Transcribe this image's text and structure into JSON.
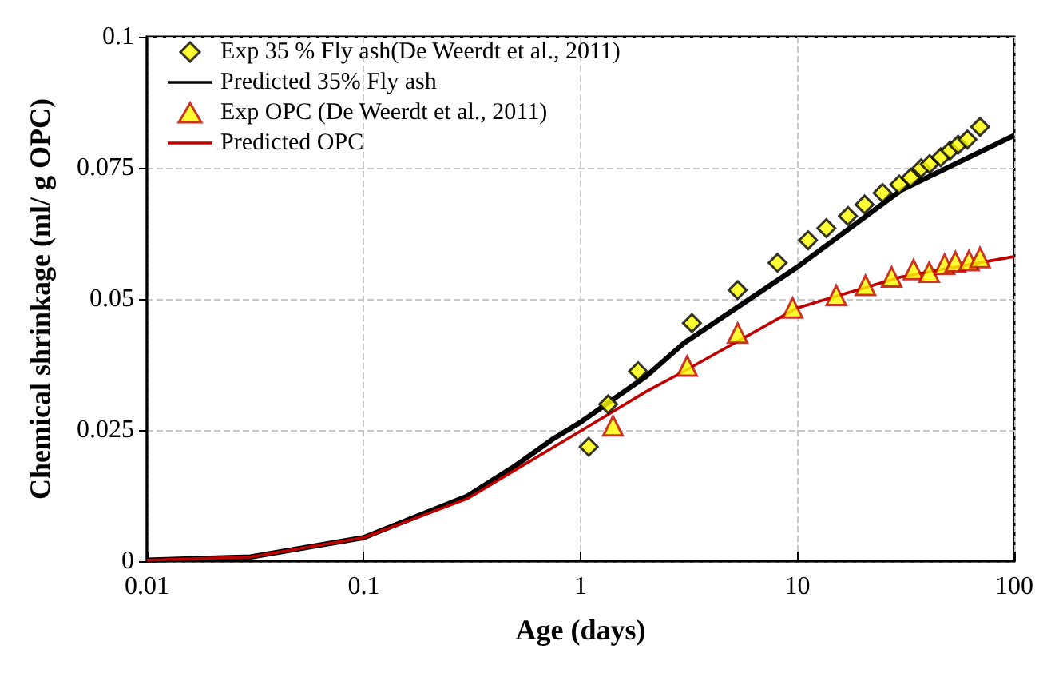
{
  "chart_data": {
    "type": "scatter",
    "xlabel": "Age (days)",
    "ylabel": "Chemical shrinkage (ml/ g OPC)",
    "log": "x",
    "xlim": [
      0.01,
      100
    ],
    "xticks": [
      0.01,
      0.1,
      1,
      10,
      100
    ],
    "ylim": [
      0,
      0.1
    ],
    "yticks": [
      0,
      0.025,
      0.05,
      0.075,
      0.1
    ],
    "grid": true,
    "legend": "top left",
    "series": [
      {
        "name": "Exp 35 % Fly ash(De Weerdt et al., 2011)",
        "type": "scatter",
        "marker": "diamond",
        "color": "#ffff00",
        "x": [
          1.09,
          1.34,
          1.84,
          3.26,
          5.3,
          8.1,
          11.2,
          13.6,
          17.1,
          20.4,
          24.7,
          29.5,
          33.3,
          37.2,
          40.7,
          45.8,
          50.6,
          55.1,
          60.8,
          69.5
        ],
        "values": [
          0.0218,
          0.0299,
          0.0362,
          0.0454,
          0.0517,
          0.0569,
          0.0612,
          0.0635,
          0.0658,
          0.068,
          0.0702,
          0.0718,
          0.0731,
          0.0749,
          0.0757,
          0.077,
          0.0783,
          0.0794,
          0.0804,
          0.0828
        ]
      },
      {
        "name": "Predicted 35% Fly ash",
        "type": "line",
        "marker": "none",
        "line_style": "solid",
        "color": "#000000",
        "x": [
          0.01,
          0.03,
          0.1,
          0.3,
          0.5,
          0.74,
          1,
          2,
          3,
          10,
          30,
          100
        ],
        "values": [
          0.0002,
          0.0008,
          0.0045,
          0.0124,
          0.0182,
          0.0232,
          0.0265,
          0.0352,
          0.0416,
          0.0561,
          0.0707,
          0.0812
        ]
      },
      {
        "name": "Exp OPC (De Weerdt et al., 2011)",
        "type": "scatter",
        "marker": "triangle",
        "color": "#ffff00",
        "x": [
          1.41,
          3.1,
          5.3,
          9.5,
          15.1,
          20.6,
          27.2,
          34.3,
          40.5,
          47.7,
          53.5,
          61.8,
          69.5
        ],
        "values": [
          0.0258,
          0.0372,
          0.0435,
          0.0483,
          0.0507,
          0.0526,
          0.0542,
          0.0556,
          0.0551,
          0.0566,
          0.0571,
          0.0573,
          0.0579
        ]
      },
      {
        "name": "Predicted OPC",
        "type": "line",
        "marker": "none",
        "line_style": "solid",
        "color": "#c00000",
        "x": [
          0.01,
          0.03,
          0.1,
          0.3,
          0.5,
          1,
          2,
          3,
          10,
          30,
          100
        ],
        "values": [
          0.0002,
          0.0008,
          0.0045,
          0.0119,
          0.0174,
          0.0248,
          0.0323,
          0.0362,
          0.0483,
          0.0542,
          0.0581
        ]
      }
    ]
  }
}
